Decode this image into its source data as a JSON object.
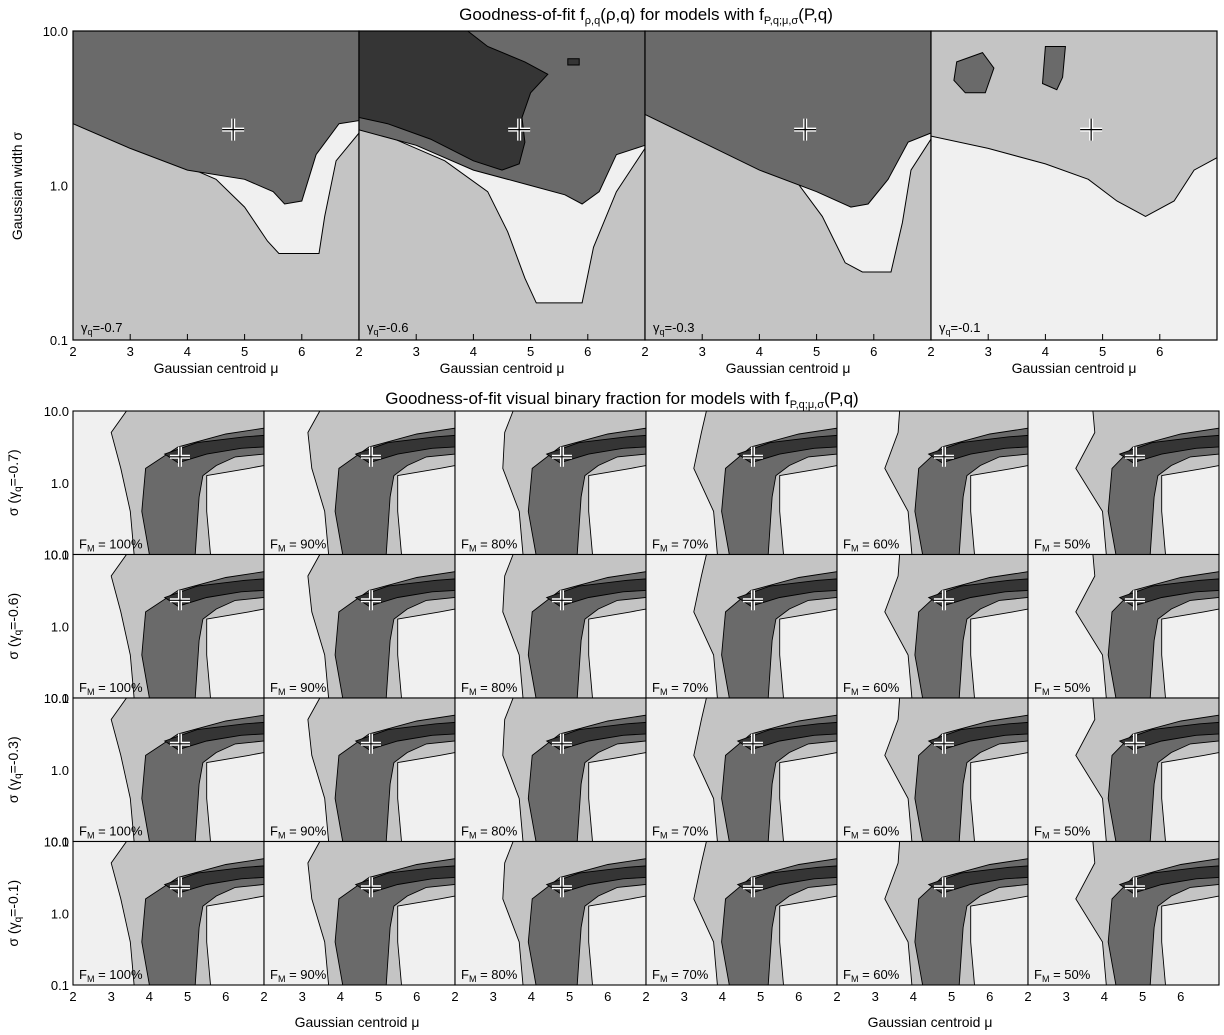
{
  "colors": {
    "background": "#ffffff",
    "level0": "#f0f0f0",
    "level1": "#c4c4c4",
    "level2": "#6a6a6a",
    "level3": "#353535",
    "frame": "#000000"
  },
  "chart_data": [
    {
      "type": "contour",
      "title": "Goodness-of-fit  f",
      "title_sub": "ρ,q",
      "title_mid": "(ρ,q) for models with f",
      "title_sub2": "P,q;μ,σ",
      "title_tail": "(P,q)",
      "ylabel": "Gaussian width σ",
      "xlabel": "Gaussian centroid μ",
      "xlim": [
        2,
        7
      ],
      "ylim": [
        0.1,
        10.0
      ],
      "yscale": "log",
      "xticks": [
        "2",
        "3",
        "4",
        "5",
        "6"
      ],
      "yticks": [
        "0.1",
        "1.0",
        "10.0"
      ],
      "best_fit": {
        "mu": 4.8,
        "sigma": 2.3
      },
      "panels": [
        {
          "label_prefix": "γ",
          "label_sub": "q",
          "label_value": "=-0.7"
        },
        {
          "label_prefix": "γ",
          "label_sub": "q",
          "label_value": "=-0.6"
        },
        {
          "label_prefix": "γ",
          "label_sub": "q",
          "label_value": "=-0.3"
        },
        {
          "label_prefix": "γ",
          "label_sub": "q",
          "label_value": "=-0.1"
        }
      ]
    },
    {
      "type": "contour",
      "title": "Goodness-of-fit visual binary fraction for models with f",
      "title_sub": "P,q;μ,σ",
      "title_tail": "(P,q)",
      "xlabel": "Gaussian centroid μ",
      "xlim": [
        2,
        7
      ],
      "ylim": [
        0.1,
        10.0
      ],
      "yscale": "log",
      "xticks": [
        "2",
        "3",
        "4",
        "5",
        "6"
      ],
      "yticks": [
        "0.1",
        "1.0",
        "10.0"
      ],
      "best_fit": {
        "mu": 4.8,
        "sigma": 2.3
      },
      "rows": [
        {
          "ylabel_prefix": "σ (γ",
          "ylabel_sub": "q",
          "ylabel_tail": "=-0.7)"
        },
        {
          "ylabel_prefix": "σ (γ",
          "ylabel_sub": "q",
          "ylabel_tail": "=-0.6)"
        },
        {
          "ylabel_prefix": "σ (γ",
          "ylabel_sub": "q",
          "ylabel_tail": "=-0.3)"
        },
        {
          "ylabel_prefix": "σ (γ",
          "ylabel_sub": "q",
          "ylabel_tail": "=-0.1)"
        }
      ],
      "columns": [
        {
          "label_prefix": "F",
          "label_sub": "M",
          "label_value": " = 100%"
        },
        {
          "label_prefix": "F",
          "label_sub": "M",
          "label_value": " = 90%"
        },
        {
          "label_prefix": "F",
          "label_sub": "M",
          "label_value": " = 80%"
        },
        {
          "label_prefix": "F",
          "label_sub": "M",
          "label_value": " = 70%"
        },
        {
          "label_prefix": "F",
          "label_sub": "M",
          "label_value": " = 60%"
        },
        {
          "label_prefix": "F",
          "label_sub": "M",
          "label_value": " = 50%"
        }
      ]
    }
  ]
}
